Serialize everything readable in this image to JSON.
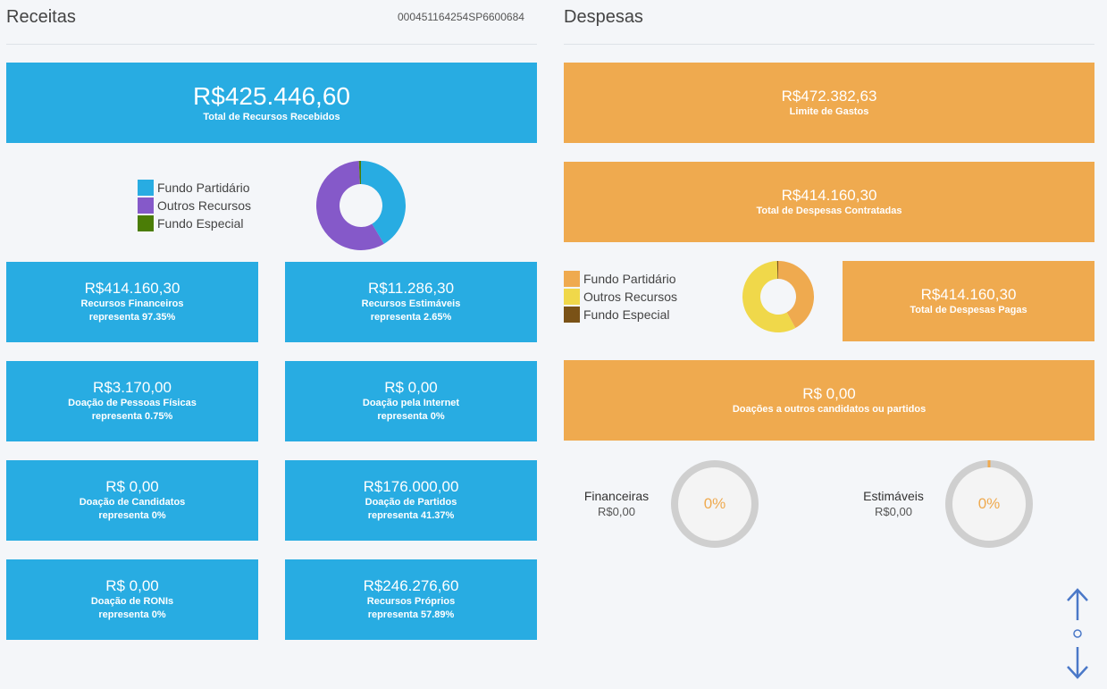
{
  "receitas": {
    "title": "Receitas",
    "id": "000451164254SP6600684",
    "total": {
      "value": "R$425.446,60",
      "label": "Total de Recursos Recebidos"
    },
    "legend": [
      {
        "label": "Fundo Partidário",
        "color": "#28ace2"
      },
      {
        "label": "Outros Recursos",
        "color": "#8559c9"
      },
      {
        "label": "Fundo Especial",
        "color": "#4b7d06"
      }
    ],
    "cards": [
      {
        "value": "R$414.160,30",
        "label": "Recursos Financeiros",
        "pct": "representa 97.35%"
      },
      {
        "value": "R$11.286,30",
        "label": "Recursos Estimáveis",
        "pct": "representa 2.65%"
      },
      {
        "value": "R$3.170,00",
        "label": "Doação de Pessoas Físicas",
        "pct": "representa 0.75%"
      },
      {
        "value": "R$ 0,00",
        "label": "Doação pela Internet",
        "pct": "representa 0%"
      },
      {
        "value": "R$ 0,00",
        "label": "Doação de Candidatos",
        "pct": "representa 0%"
      },
      {
        "value": "R$176.000,00",
        "label": "Doação de Partidos",
        "pct": "representa 41.37%"
      },
      {
        "value": "R$ 0,00",
        "label": "Doação de RONIs",
        "pct": "representa 0%"
      },
      {
        "value": "R$246.276,60",
        "label": "Recursos Próprios",
        "pct": "representa 57.89%"
      }
    ]
  },
  "despesas": {
    "title": "Despesas",
    "limite": {
      "value": "R$472.382,63",
      "label": "Limite de Gastos"
    },
    "contratadas": {
      "value": "R$414.160,30",
      "label": "Total de Despesas Contratadas"
    },
    "pagas": {
      "value": "R$414.160,30",
      "label": "Total de Despesas Pagas"
    },
    "doacoes": {
      "value": "R$ 0,00",
      "label": "Doações a outros candidatos ou partidos"
    },
    "legend": [
      {
        "label": "Fundo Partidário",
        "color": "#efaa4f"
      },
      {
        "label": "Outros Recursos",
        "color": "#f0d84a"
      },
      {
        "label": "Fundo Especial",
        "color": "#7a5217"
      }
    ],
    "gauges": [
      {
        "title": "Financeiras",
        "value": "R$0,00",
        "pct": "0%"
      },
      {
        "title": "Estimáveis",
        "value": "R$0,00",
        "pct": "0%"
      }
    ]
  },
  "chart_data": [
    {
      "type": "pie",
      "categories": [
        "Fundo Partidário",
        "Outros Recursos",
        "Fundo Especial"
      ],
      "values": [
        41.37,
        57.89,
        0.75
      ]
    },
    {
      "type": "pie",
      "categories": [
        "Fundo Partidário",
        "Outros Recursos",
        "Fundo Especial"
      ],
      "values": [
        42,
        57.5,
        0.5
      ]
    }
  ]
}
